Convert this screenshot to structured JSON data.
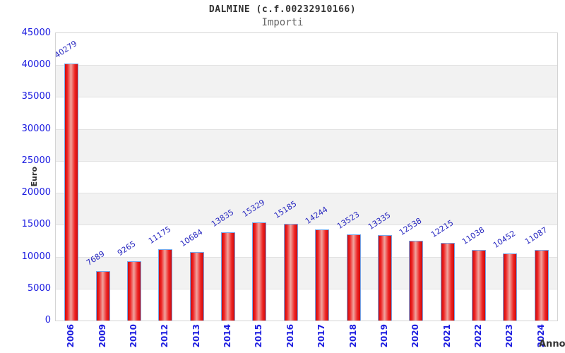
{
  "header": {
    "title": "DALMINE (c.f.00232910166)",
    "subtitle": "Importi"
  },
  "chart_data": {
    "type": "bar",
    "title": "DALMINE (c.f.00232910166)",
    "subtitle": "Importi",
    "xlabel": "Anno",
    "ylabel": "Euro",
    "categories": [
      "2006",
      "2009",
      "2010",
      "2012",
      "2013",
      "2014",
      "2015",
      "2016",
      "2017",
      "2018",
      "2019",
      "2020",
      "2021",
      "2022",
      "2023",
      "2024"
    ],
    "values": [
      40279,
      7689,
      9265,
      11175,
      10684,
      13835,
      15329,
      15185,
      14244,
      13523,
      13335,
      12538,
      12215,
      11038,
      10452,
      11087
    ],
    "ylim": [
      0,
      45000
    ],
    "yticks": [
      0,
      5000,
      10000,
      15000,
      20000,
      25000,
      30000,
      35000,
      40000,
      45000
    ],
    "grid": true,
    "legend": "none",
    "colors": {
      "bar_red_dark": "#cc0c0c",
      "bar_red": "#ee2222",
      "bar_highlight": "#f0a49e",
      "bar_border": "#74a7ea",
      "axis_tick_label": "#1b1be0",
      "value_label": "#2929c0",
      "band_gray": "#f2f2f2",
      "grid_line": "#e2e2e2",
      "plot_border": "#d4d4d4",
      "title_text": "#333333",
      "subtitle_text": "#666666"
    }
  }
}
